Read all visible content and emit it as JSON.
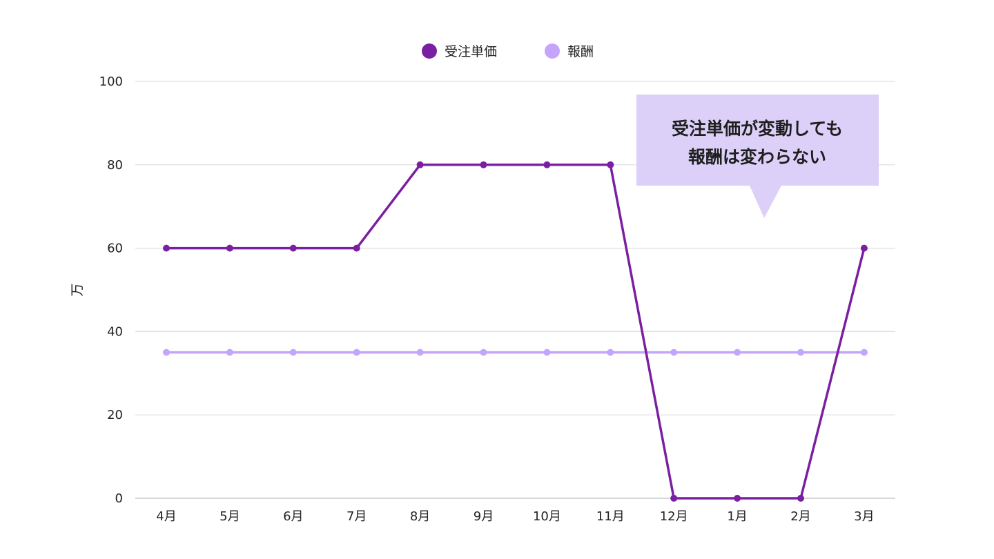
{
  "chart_data": {
    "type": "line",
    "categories": [
      "4月",
      "5月",
      "6月",
      "7月",
      "8月",
      "9月",
      "10月",
      "11月",
      "12月",
      "1月",
      "2月",
      "3月"
    ],
    "series": [
      {
        "name": "受注単価",
        "color": "#7b1fa2",
        "values": [
          60,
          60,
          60,
          60,
          80,
          80,
          80,
          80,
          0,
          0,
          0,
          60
        ]
      },
      {
        "name": "報酬",
        "color": "#c4a5fb",
        "values": [
          35,
          35,
          35,
          35,
          35,
          35,
          35,
          35,
          35,
          35,
          35,
          35
        ]
      }
    ],
    "ylabel": "万",
    "ylim": [
      0,
      100
    ],
    "yticks": [
      "0",
      "20",
      "40",
      "60",
      "80",
      "100"
    ],
    "grid": true,
    "legend_position": "top-center",
    "annotation": {
      "lines": [
        "受注単価が変動しても",
        "報酬は変わらない"
      ],
      "background": "#ddd0f8"
    }
  }
}
